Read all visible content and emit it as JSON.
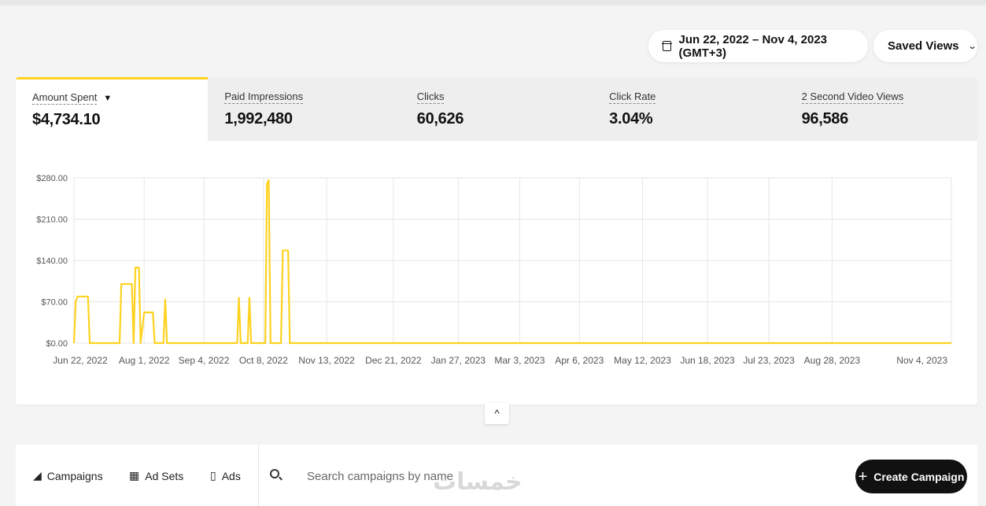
{
  "date_range": {
    "label": "Jun 22, 2022 – Nov 4, 2023 (GMT+3)",
    "icon": "calendar-icon"
  },
  "saved_views": {
    "label": "Saved Views",
    "icon": "chevron-down-icon"
  },
  "metrics": [
    {
      "label": "Amount Spent",
      "value": "$4,734.10",
      "active": true
    },
    {
      "label": "Paid Impressions",
      "value": "1,992,480"
    },
    {
      "label": "Clicks",
      "value": "60,626"
    },
    {
      "label": "Click Rate",
      "value": "3.04%"
    },
    {
      "label": "2 Second Video Views",
      "value": "96,586"
    }
  ],
  "metric_caret": "▼",
  "chart_data": {
    "type": "line",
    "series": [
      {
        "values": [
          [
            0,
            0
          ],
          [
            1,
            70
          ],
          [
            2,
            79
          ],
          [
            8,
            79
          ],
          [
            9,
            0
          ],
          [
            26,
            0
          ],
          [
            27,
            100
          ],
          [
            33,
            100
          ],
          [
            34,
            0
          ],
          [
            35,
            128
          ],
          [
            37,
            128
          ],
          [
            38,
            0
          ],
          [
            40,
            52
          ],
          [
            45,
            52
          ],
          [
            46,
            0
          ],
          [
            51,
            0
          ],
          [
            52,
            74
          ],
          [
            53,
            0
          ],
          [
            93,
            0
          ],
          [
            94,
            77
          ],
          [
            95,
            0
          ],
          [
            99,
            0
          ],
          [
            100,
            77
          ],
          [
            101,
            0
          ],
          [
            109,
            0
          ],
          [
            110,
            270
          ],
          [
            111,
            276
          ],
          [
            112,
            0
          ],
          [
            118,
            0
          ],
          [
            119,
            157
          ],
          [
            122,
            157
          ],
          [
            123,
            0
          ],
          [
            500,
            0
          ]
        ]
      }
    ],
    "x_tick_labels": [
      "Jun 22, 2022",
      "Aug 1, 2022",
      "Sep 4, 2022",
      "Oct 8, 2022",
      "Nov 13, 2022",
      "Dec 21, 2022",
      "Jan 27, 2023",
      "Mar 3, 2023",
      "Apr 6, 2023",
      "May 12, 2023",
      "Jun 18, 2023",
      "Jul 23, 2023",
      "Aug 28, 2023",
      "Nov 4, 2023"
    ],
    "x_tick_days": [
      0,
      40,
      74,
      108,
      144,
      182,
      219,
      254,
      288,
      324,
      361,
      396,
      432,
      500
    ],
    "y_tick_labels": [
      "$0.00",
      "$70.00",
      "$140.00",
      "$210.00",
      "$280.00"
    ],
    "y_ticks": [
      0,
      70,
      140,
      210,
      280
    ],
    "ylim": [
      0,
      280
    ],
    "xlim": [
      0,
      500
    ],
    "grid": true,
    "line_color": "#ffd21f"
  },
  "collapse_icon": "^",
  "tabs": [
    {
      "label": "Campaigns",
      "icon": "megaphone-icon",
      "glyph": "◢"
    },
    {
      "label": "Ad Sets",
      "icon": "grid-icon",
      "glyph": "▦"
    },
    {
      "label": "Ads",
      "icon": "phone-icon",
      "glyph": "▯"
    }
  ],
  "search": {
    "placeholder": "Search campaigns by name"
  },
  "create_campaign": {
    "label": "Create Campaign",
    "plus": "+"
  },
  "watermark": "خمسات"
}
